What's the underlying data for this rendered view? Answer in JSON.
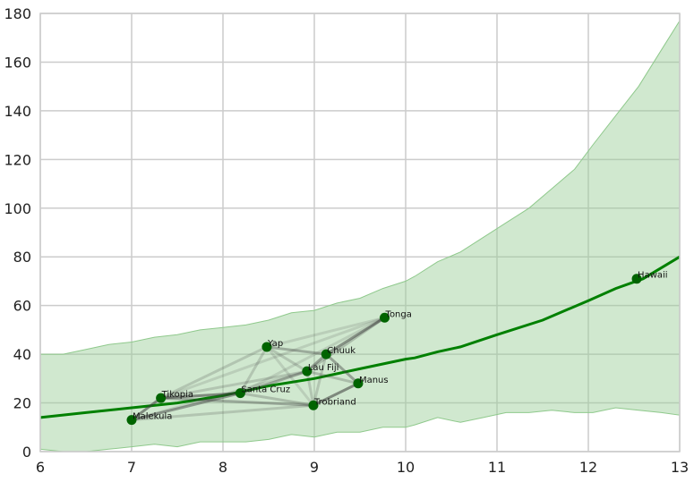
{
  "chart_data": {
    "type": "line",
    "title": "",
    "xlabel": "",
    "ylabel": "",
    "xlim": [
      6,
      13
    ],
    "ylim": [
      0,
      180
    ],
    "grid": true,
    "x_ticks": [
      "6",
      "7",
      "8",
      "9",
      "10",
      "11",
      "12",
      "13"
    ],
    "y_ticks": [
      "0",
      "20",
      "40",
      "60",
      "80",
      "100",
      "120",
      "140",
      "160",
      "180"
    ],
    "colors": {
      "band_fill": "#97cc94",
      "band_edge": "#8fc98c",
      "trend_line": "#008000",
      "points": "#006400",
      "connections": "#3a3a3a",
      "grid": "#cccccc",
      "plot_border": "#cccccc",
      "background": "#ffffff"
    },
    "points": [
      {
        "label": "Malekula",
        "x": 7.0,
        "y": 13
      },
      {
        "label": "Tikopia",
        "x": 7.32,
        "y": 22
      },
      {
        "label": "Santa Cruz",
        "x": 8.19,
        "y": 24
      },
      {
        "label": "Yap",
        "x": 8.48,
        "y": 43
      },
      {
        "label": "Lau Fiji",
        "x": 8.92,
        "y": 33
      },
      {
        "label": "Trobriand",
        "x": 8.99,
        "y": 19
      },
      {
        "label": "Chuuk",
        "x": 9.13,
        "y": 40
      },
      {
        "label": "Manus",
        "x": 9.48,
        "y": 28
      },
      {
        "label": "Tonga",
        "x": 9.77,
        "y": 55
      },
      {
        "label": "Hawaii",
        "x": 12.53,
        "y": 71
      }
    ],
    "connections": [
      {
        "from": "Malekula",
        "to": "Tikopia",
        "weight": 0.55
      },
      {
        "from": "Malekula",
        "to": "Santa Cruz",
        "weight": 0.45
      },
      {
        "from": "Malekula",
        "to": "Trobriand",
        "weight": 0.2
      },
      {
        "from": "Malekula",
        "to": "Lau Fiji",
        "weight": 0.15
      },
      {
        "from": "Tikopia",
        "to": "Santa Cruz",
        "weight": 0.55
      },
      {
        "from": "Tikopia",
        "to": "Lau Fiji",
        "weight": 0.2
      },
      {
        "from": "Tikopia",
        "to": "Yap",
        "weight": 0.2
      },
      {
        "from": "Tikopia",
        "to": "Tonga",
        "weight": 0.15
      },
      {
        "from": "Tikopia",
        "to": "Trobriand",
        "weight": 0.35
      },
      {
        "from": "Santa Cruz",
        "to": "Lau Fiji",
        "weight": 0.35
      },
      {
        "from": "Santa Cruz",
        "to": "Yap",
        "weight": 0.2
      },
      {
        "from": "Santa Cruz",
        "to": "Trobriand",
        "weight": 0.25
      },
      {
        "from": "Santa Cruz",
        "to": "Tonga",
        "weight": 0.15
      },
      {
        "from": "Yap",
        "to": "Chuuk",
        "weight": 0.35
      },
      {
        "from": "Yap",
        "to": "Lau Fiji",
        "weight": 0.2
      },
      {
        "from": "Yap",
        "to": "Tonga",
        "weight": 0.15
      },
      {
        "from": "Yap",
        "to": "Trobriand",
        "weight": 0.15
      },
      {
        "from": "Lau Fiji",
        "to": "Chuuk",
        "weight": 0.4
      },
      {
        "from": "Lau Fiji",
        "to": "Tonga",
        "weight": 0.25
      },
      {
        "from": "Lau Fiji",
        "to": "Manus",
        "weight": 0.25
      },
      {
        "from": "Lau Fiji",
        "to": "Trobriand",
        "weight": 0.2
      },
      {
        "from": "Chuuk",
        "to": "Tonga",
        "weight": 0.5
      },
      {
        "from": "Chuuk",
        "to": "Manus",
        "weight": 0.4
      },
      {
        "from": "Chuuk",
        "to": "Trobriand",
        "weight": 0.2
      },
      {
        "from": "Trobriand",
        "to": "Manus",
        "weight": 0.55
      }
    ],
    "trend": {
      "x": [
        6,
        6.5,
        7,
        7.5,
        8,
        8.5,
        9,
        9.5,
        10,
        10.1,
        10.35,
        10.6,
        11,
        11.5,
        12,
        12.3,
        12.6,
        13
      ],
      "y": [
        14,
        16,
        18,
        20,
        23,
        27,
        30,
        34,
        38,
        38.5,
        41,
        43,
        48,
        54,
        62,
        67,
        71,
        80
      ]
    },
    "band": {
      "x": [
        6,
        6.25,
        6.5,
        6.75,
        7,
        7.25,
        7.5,
        7.75,
        8,
        8.25,
        8.5,
        8.75,
        9,
        9.25,
        9.5,
        9.75,
        10,
        10.1,
        10.35,
        10.6,
        10.85,
        11.1,
        11.35,
        11.6,
        11.85,
        12.05,
        12.3,
        12.55,
        12.8,
        13
      ],
      "lower": [
        1,
        0,
        0,
        1,
        2,
        3,
        2,
        4,
        4,
        4,
        5,
        7,
        6,
        8,
        8,
        10,
        10,
        11,
        14,
        12,
        14,
        16,
        16,
        17,
        16,
        16,
        18,
        17,
        16,
        15
      ],
      "upper": [
        40,
        40,
        42,
        44,
        45,
        47,
        48,
        50,
        51,
        52,
        54,
        57,
        58,
        61,
        63,
        67,
        70,
        72,
        78,
        82,
        88,
        94,
        100,
        108,
        116,
        126,
        138,
        150,
        165,
        177
      ]
    }
  }
}
